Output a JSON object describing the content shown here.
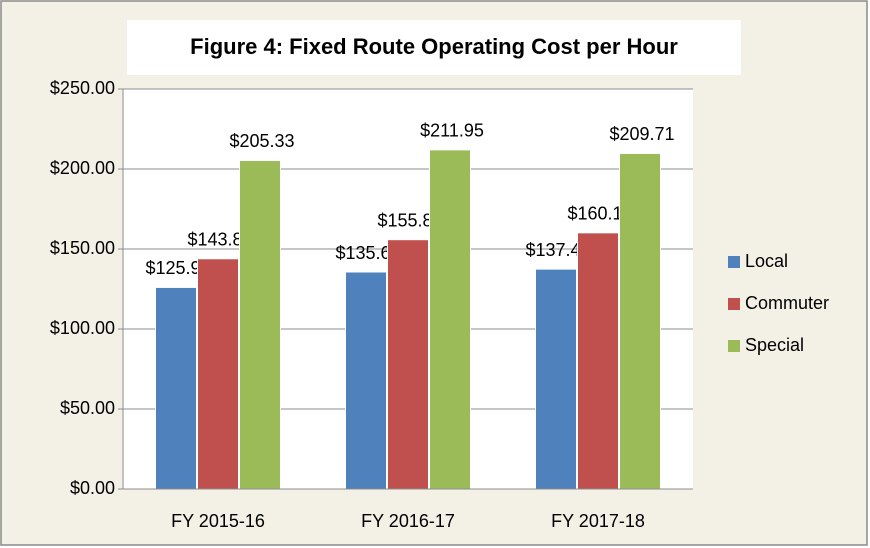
{
  "chart_data": {
    "type": "bar",
    "title": "Figure 4: Fixed Route Operating Cost per Hour",
    "categories": [
      "FY 2015-16",
      "FY 2016-17",
      "FY 2017-18"
    ],
    "series": [
      {
        "name": "Local",
        "color": "#4f81bd",
        "values": [
          125.98,
          135.62,
          137.42
        ],
        "value_labels": [
          "$125.98",
          "$135.62",
          "$137.42"
        ]
      },
      {
        "name": "Commuter",
        "color": "#c0504d",
        "values": [
          143.89,
          155.82,
          160.1
        ],
        "value_labels": [
          "$143.89",
          "$155.82",
          "$160.10"
        ]
      },
      {
        "name": "Special",
        "color": "#9bbb59",
        "values": [
          205.33,
          211.95,
          209.71
        ],
        "value_labels": [
          "$205.33",
          "$211.95",
          "$209.71"
        ]
      }
    ],
    "ylim": [
      0,
      250
    ],
    "yticks": [
      {
        "value": 0,
        "label": "$0.00"
      },
      {
        "value": 50,
        "label": "$50.00"
      },
      {
        "value": 100,
        "label": "$100.00"
      },
      {
        "value": 150,
        "label": "$150.00"
      },
      {
        "value": 200,
        "label": "$200.00"
      },
      {
        "value": 250,
        "label": "$250.00"
      }
    ],
    "grid": true,
    "legend": "right"
  }
}
